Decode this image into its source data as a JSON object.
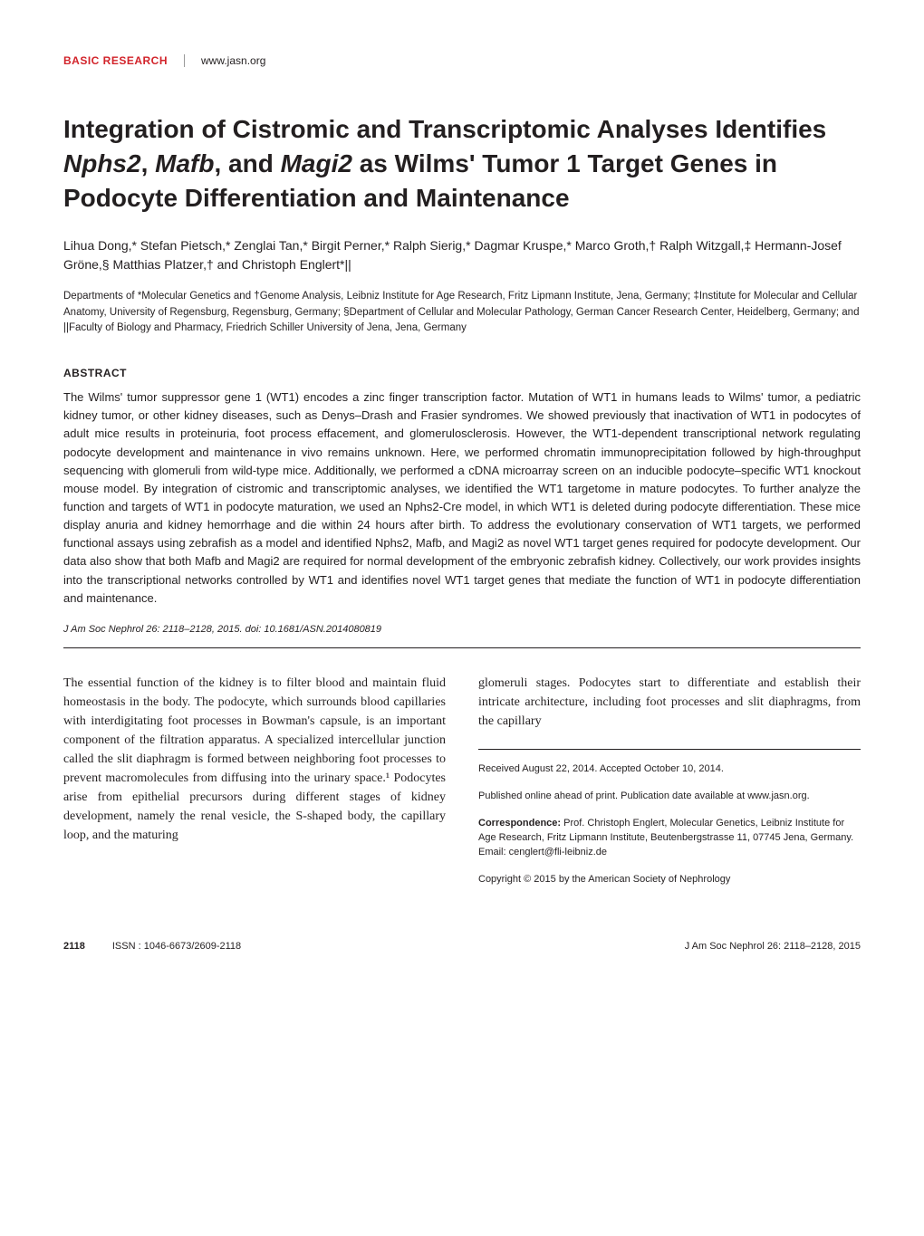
{
  "header": {
    "section": "BASIC RESEARCH",
    "website": "www.jasn.org"
  },
  "title": {
    "line1_pre": "Integration of Cistromic and Transcriptomic Analyses Identifies ",
    "gene1": "Nphs2",
    "sep1": ", ",
    "gene2": "Mafb",
    "sep2": ", and ",
    "gene3": "Magi2",
    "line1_post": " as Wilms' Tumor 1 Target Genes in Podocyte Differentiation and Maintenance"
  },
  "authors": "Lihua Dong,* Stefan Pietsch,* Zenglai Tan,* Birgit Perner,* Ralph Sierig,* Dagmar Kruspe,* Marco Groth,† Ralph Witzgall,‡ Hermann-Josef Gröne,§ Matthias Platzer,† and Christoph Englert*||",
  "affiliations": "Departments of *Molecular Genetics and †Genome Analysis, Leibniz Institute for Age Research, Fritz Lipmann Institute, Jena, Germany; ‡Institute for Molecular and Cellular Anatomy, University of Regensburg, Regensburg, Germany; §Department of Cellular and Molecular Pathology, German Cancer Research Center, Heidelberg, Germany; and ||Faculty of Biology and Pharmacy, Friedrich Schiller University of Jena, Jena, Germany",
  "abstract": {
    "heading": "ABSTRACT",
    "body": "The Wilms' tumor suppressor gene 1 (WT1) encodes a zinc finger transcription factor. Mutation of WT1 in humans leads to Wilms' tumor, a pediatric kidney tumor, or other kidney diseases, such as Denys–Drash and Frasier syndromes. We showed previously that inactivation of WT1 in podocytes of adult mice results in proteinuria, foot process effacement, and glomerulosclerosis. However, the WT1-dependent transcriptional network regulating podocyte development and maintenance in vivo remains unknown. Here, we performed chromatin immunoprecipitation followed by high-throughput sequencing with glomeruli from wild-type mice. Additionally, we performed a cDNA microarray screen on an inducible podocyte–specific WT1 knockout mouse model. By integration of cistromic and transcriptomic analyses, we identified the WT1 targetome in mature podocytes. To further analyze the function and targets of WT1 in podocyte maturation, we used an Nphs2-Cre model, in which WT1 is deleted during podocyte differentiation. These mice display anuria and kidney hemorrhage and die within 24 hours after birth. To address the evolutionary conservation of WT1 targets, we performed functional assays using zebrafish as a model and identified Nphs2, Mafb, and Magi2 as novel WT1 target genes required for podocyte development. Our data also show that both Mafb and Magi2 are required for normal development of the embryonic zebrafish kidney. Collectively, our work provides insights into the transcriptional networks controlled by WT1 and identifies novel WT1 target genes that mediate the function of WT1 in podocyte differentiation and maintenance."
  },
  "citation": "J Am Soc Nephrol 26: 2118–2128, 2015. doi: 10.1681/ASN.2014080819",
  "body": {
    "left": "The essential function of the kidney is to filter blood and maintain fluid homeostasis in the body. The podocyte, which surrounds blood capillaries with interdigitating foot processes in Bowman's capsule, is an important component of the filtration apparatus. A specialized intercellular junction called the slit diaphragm is formed between neighboring foot processes to prevent macromolecules from diffusing into the urinary space.¹ Podocytes arise from epithelial precursors during different stages of kidney development, namely the renal vesicle, the S-shaped body, the capillary loop, and the maturing",
    "right_top": "glomeruli stages. Podocytes start to differentiate and establish their intricate architecture, including foot processes and slit diaphragms, from the capillary"
  },
  "metadata": {
    "received": "Received August 22, 2014. Accepted October 10, 2014.",
    "published": "Published online ahead of print. Publication date available at www.jasn.org.",
    "correspondence_label": "Correspondence:",
    "correspondence_body": " Prof. Christoph Englert, Molecular Genetics, Leibniz Institute for Age Research, Fritz Lipmann Institute, Beutenbergstrasse 11, 07745 Jena, Germany. Email: cenglert@fli-leibniz.de",
    "copyright": "Copyright © 2015 by the American Society of Nephrology"
  },
  "footer": {
    "page": "2118",
    "issn": "ISSN : 1046-6673/2609-2118",
    "journal_ref": "J Am Soc Nephrol 26: 2118–2128, 2015"
  }
}
